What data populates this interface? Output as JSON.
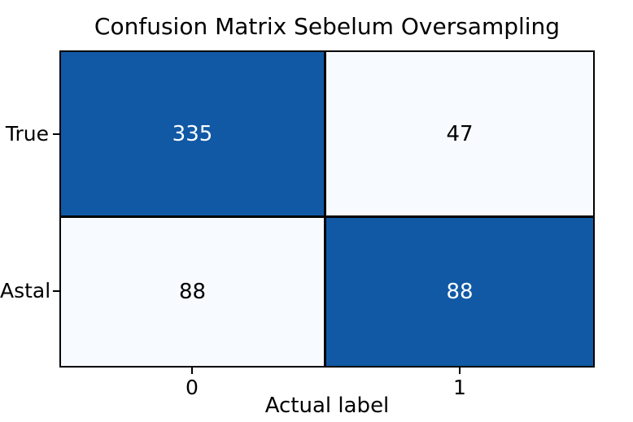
{
  "figure": {
    "background_color": "#ffffff",
    "title": "Confusion Matrix Sebelum Oversampling"
  },
  "chart_data": {
    "type": "heatmap",
    "title": "Confusion Matrix Sebelum Oversampling",
    "xlabel": "Actual label",
    "ylabel": "",
    "x_tick_labels": [
      "0",
      "1"
    ],
    "y_tick_labels": [
      "True",
      "Astal"
    ],
    "matrix": [
      [
        335,
        47
      ],
      [
        88,
        88
      ]
    ],
    "cells": [
      {
        "row": 0,
        "col": 0,
        "value": 335,
        "tone": "dark"
      },
      {
        "row": 0,
        "col": 1,
        "value": 47,
        "tone": "light"
      },
      {
        "row": 1,
        "col": 0,
        "value": 88,
        "tone": "light"
      },
      {
        "row": 1,
        "col": 1,
        "value": 88,
        "tone": "dark"
      }
    ],
    "colors": {
      "high_cell": "#1159a5",
      "low_cell": "#f7fbff",
      "border_and_grid": "#000000",
      "text_on_dark": "#ffffff",
      "text_on_light": "#000000"
    },
    "layout": {
      "grid": "off",
      "legend": "none",
      "colorbar": "none"
    }
  }
}
